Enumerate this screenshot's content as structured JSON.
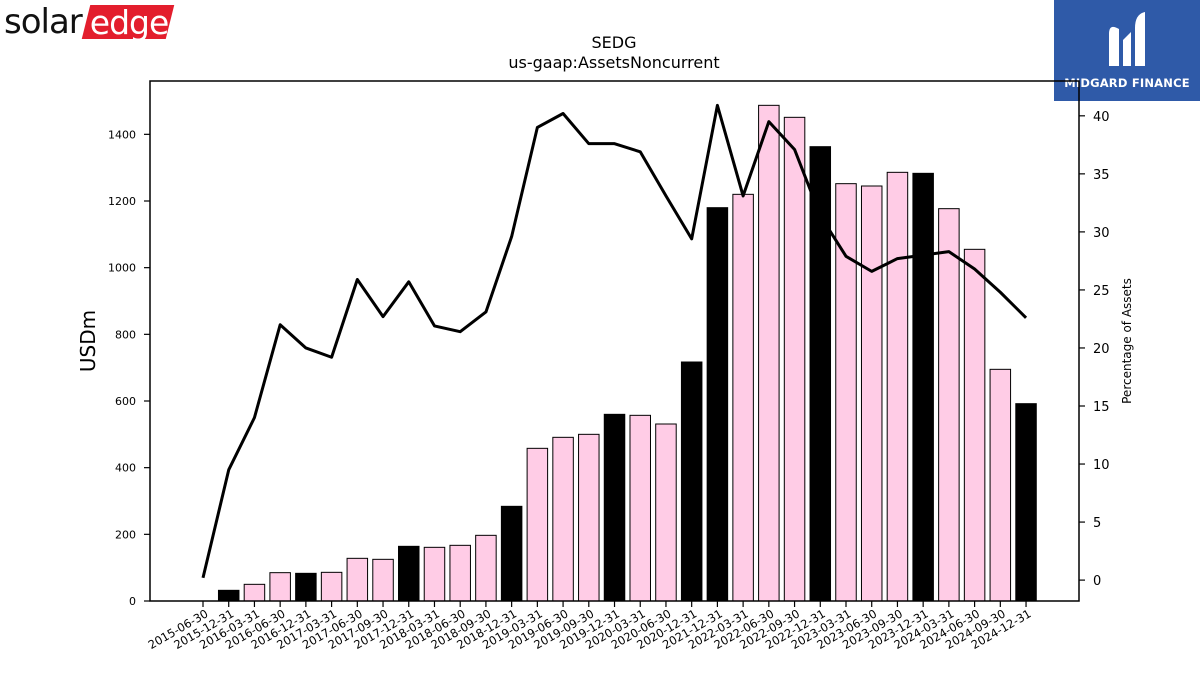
{
  "branding": {
    "left_logo_part1": "solar",
    "left_logo_part2": "edge",
    "left_logo_color": "#e31e2d",
    "right_logo_text": "MIDGARD FINANCE",
    "right_logo_color": "#2f5aa8"
  },
  "chart_data": {
    "type": "bar",
    "title": "SEDG",
    "subtitle": "us-gaap:AssetsNoncurrent",
    "ylabel": "USDm",
    "y2label": "Percentage of Assets",
    "ylim": [
      0,
      1560
    ],
    "y2lim": [
      -1.8,
      43.0
    ],
    "yticks": [
      0,
      200,
      400,
      600,
      800,
      1000,
      1200,
      1400
    ],
    "y2ticks": [
      0,
      5,
      10,
      15,
      20,
      25,
      30,
      35,
      40
    ],
    "categories": [
      "2015-06-30",
      "2015-12-31",
      "2016-03-31",
      "2016-06-30",
      "2016-12-31",
      "2017-03-31",
      "2017-06-30",
      "2017-09-30",
      "2017-12-31",
      "2018-03-31",
      "2018-06-30",
      "2018-09-30",
      "2018-12-31",
      "2019-03-31",
      "2019-06-30",
      "2019-09-30",
      "2019-12-31",
      "2020-03-31",
      "2020-06-30",
      "2020-12-31",
      "2021-12-31",
      "2022-03-31",
      "2022-06-30",
      "2022-09-30",
      "2022-12-31",
      "2023-03-31",
      "2023-06-30",
      "2023-09-30",
      "2023-12-31",
      "2024-03-31",
      "2024-06-30",
      "2024-09-30",
      "2024-12-31"
    ],
    "series": [
      {
        "kind": "bar",
        "values": [
          0,
          32,
          50,
          85,
          83,
          86,
          128,
          125,
          164,
          161,
          167,
          197,
          284,
          458,
          491,
          500,
          560,
          557,
          531,
          717,
          1180,
          1220,
          1487,
          1451,
          1363,
          1252,
          1245,
          1286,
          1283,
          1177,
          1055,
          695,
          592
        ],
        "highlight": [
          false,
          true,
          false,
          false,
          true,
          false,
          false,
          false,
          true,
          false,
          false,
          false,
          true,
          false,
          false,
          false,
          true,
          false,
          false,
          true,
          true,
          false,
          false,
          false,
          true,
          false,
          false,
          false,
          true,
          false,
          false,
          false,
          true
        ],
        "fill_color": "#ffcce6",
        "highlight_color": "#000000"
      },
      {
        "kind": "line",
        "axis": "right",
        "values": [
          0.2,
          9.5,
          14.0,
          22.0,
          20.0,
          19.2,
          25.9,
          22.7,
          25.7,
          21.9,
          21.4,
          23.1,
          29.6,
          39.0,
          40.2,
          37.6,
          37.6,
          36.9,
          33.1,
          29.4,
          40.9,
          33.1,
          39.5,
          37.1,
          31.4,
          27.9,
          26.6,
          27.7,
          28.0,
          28.3,
          26.8,
          24.8,
          22.6
        ],
        "color": "#000000"
      }
    ]
  }
}
